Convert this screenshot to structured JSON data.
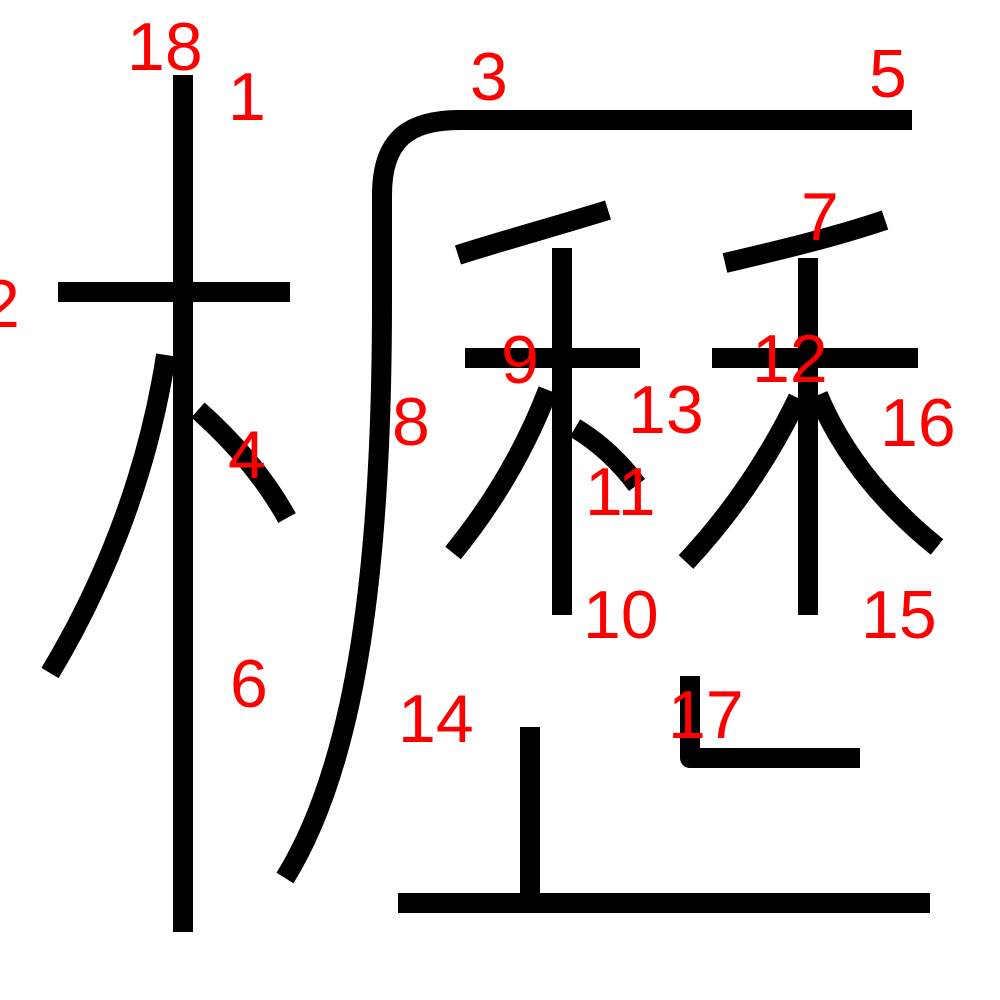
{
  "stroke_color": "#000000",
  "label_color": "#ff0000",
  "background_color": "#ffffff",
  "stroke_numbers": [
    "1",
    "2",
    "3",
    "4",
    "5",
    "6",
    "7",
    "8",
    "9",
    "10",
    "11",
    "12",
    "13",
    "14",
    "15",
    "16",
    "17",
    "18"
  ]
}
